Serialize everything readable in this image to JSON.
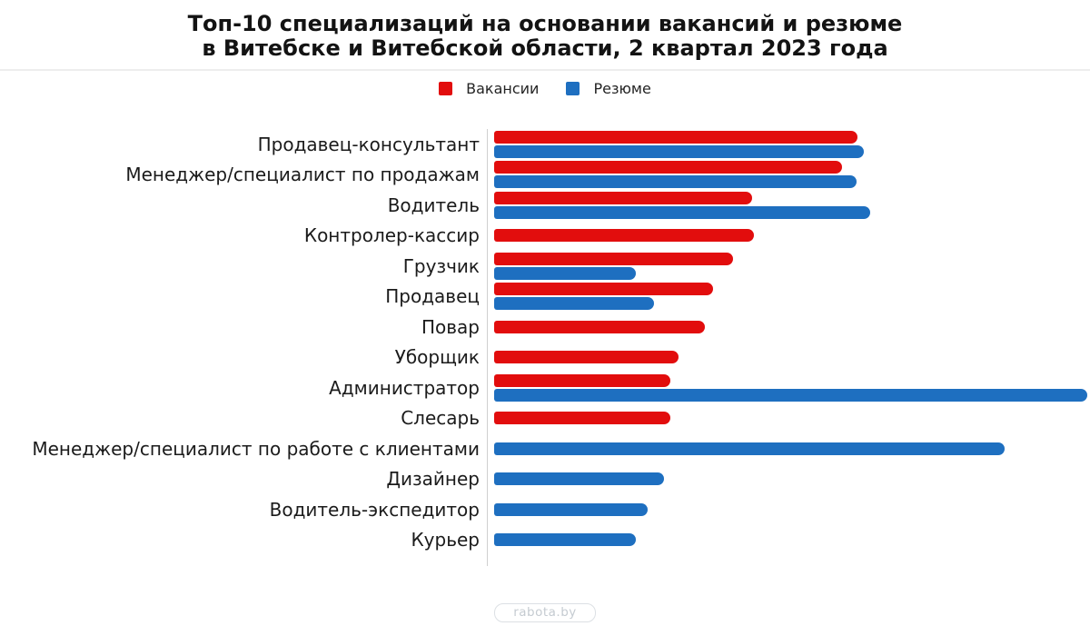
{
  "title": {
    "line1": "Топ-10 специализаций на основании вакансий и резюме",
    "line2": "в Витебске и Витебской области, 2 квартал 2023 года"
  },
  "legend": {
    "items": [
      {
        "label": "Вакансии",
        "color": "#e20d0d"
      },
      {
        "label": "Резюме",
        "color": "#1e6fc0"
      }
    ]
  },
  "footer": {
    "badge_label": "rabota.by"
  },
  "colors": {
    "vacancies": "#e20d0d",
    "resumes": "#1e6fc0",
    "axis": "#d0d0d0",
    "separator": "#ededed"
  },
  "chart_data": {
    "type": "bar",
    "orientation": "horizontal",
    "title": "Топ-10 специализаций на основании вакансий и резюме в Витебске и Витебской области, 2 квартал 2023 года",
    "categories": [
      "Продавец-консультант",
      "Менеджер/специалист по продажам",
      "Водитель",
      "Контролер-кассир",
      "Грузчик",
      "Продавец",
      "Повар",
      "Уборщик",
      "Администратор",
      "Слесарь",
      "Менеджер/специалист по работе с клиентами",
      "Дизайнер",
      "Водитель-экспедитор",
      "Курьер"
    ],
    "series": [
      {
        "name": "Вакансии",
        "color": "#e20d0d",
        "values": [
          400,
          383,
          284,
          286,
          263,
          241,
          232,
          203,
          194,
          194,
          null,
          null,
          null,
          null
        ]
      },
      {
        "name": "Резюме",
        "color": "#1e6fc0",
        "values": [
          407,
          399,
          414,
          null,
          156,
          176,
          null,
          null,
          653,
          null,
          562,
          187,
          169,
          156
        ]
      }
    ],
    "value_units": "relative length, no numeric axis shown in figure",
    "xlim": [
      0,
      656
    ],
    "grid": false,
    "legend_position": "top"
  }
}
